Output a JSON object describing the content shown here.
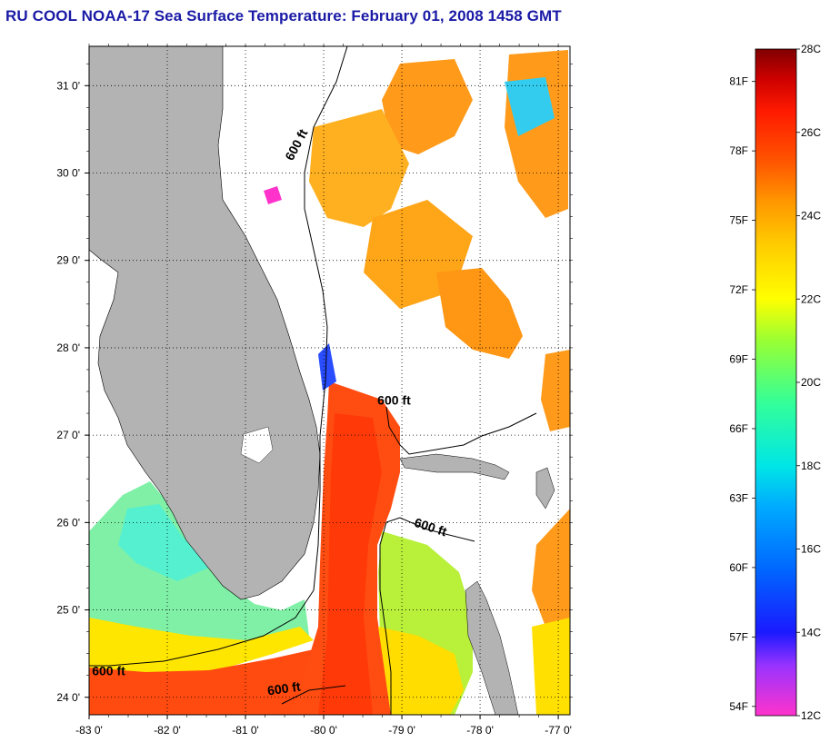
{
  "title": "RU COOL  NOAA-17  Sea Surface Temperature:  February 01, 2008 1458 GMT",
  "map": {
    "lon_range": [
      -83,
      -76.85
    ],
    "lat_range": [
      23.8,
      31.45
    ],
    "lon_ticks": [
      {
        "value": -83,
        "label": "-83 0'"
      },
      {
        "value": -82,
        "label": "-82 0'"
      },
      {
        "value": -81,
        "label": "-81 0'"
      },
      {
        "value": -80,
        "label": "-80 0'"
      },
      {
        "value": -79,
        "label": "-79 0'"
      },
      {
        "value": -78,
        "label": "-78 0'"
      },
      {
        "value": -77,
        "label": "-77 0'"
      }
    ],
    "lat_ticks": [
      {
        "value": 24,
        "label": "24 0'"
      },
      {
        "value": 25,
        "label": "25 0'"
      },
      {
        "value": 26,
        "label": "26 0'"
      },
      {
        "value": 27,
        "label": "27 0'"
      },
      {
        "value": 28,
        "label": "28 0'"
      },
      {
        "value": 29,
        "label": "29 0'"
      },
      {
        "value": 30,
        "label": "30 0'"
      },
      {
        "value": 31,
        "label": "31 0'"
      }
    ],
    "grid": "dotted",
    "contour_labels": [
      {
        "text": "600 ft",
        "lon": -80.3,
        "lat": 30.3,
        "rotate": -62
      },
      {
        "text": "600 ft",
        "lon": -79.1,
        "lat": 27.35,
        "rotate": 0
      },
      {
        "text": "600 ft",
        "lon": -78.65,
        "lat": 25.9,
        "rotate": 18
      },
      {
        "text": "600 ft",
        "lon": -82.75,
        "lat": 24.25,
        "rotate": 0
      },
      {
        "text": "600 ft",
        "lon": -80.5,
        "lat": 24.05,
        "rotate": -8
      }
    ],
    "land_color": "#b3b3b3",
    "no_data_color": "#ffffff"
  },
  "colorbar": {
    "celsius_labels": [
      "28C",
      "26C",
      "24C",
      "22C",
      "20C",
      "18C",
      "16C",
      "14C",
      "12C"
    ],
    "fahrenheit_labels": [
      "81F",
      "78F",
      "75F",
      "72F",
      "69F",
      "66F",
      "63F",
      "60F",
      "57F",
      "54F"
    ],
    "range_c": [
      12,
      28
    ],
    "stops": [
      {
        "c": 12,
        "color": "#ff33cc"
      },
      {
        "c": 13.2,
        "color": "#9933ff"
      },
      {
        "c": 14,
        "color": "#1a1aff"
      },
      {
        "c": 15.5,
        "color": "#0066ff"
      },
      {
        "c": 17,
        "color": "#00aaff"
      },
      {
        "c": 18,
        "color": "#00e6e6"
      },
      {
        "c": 19.5,
        "color": "#33ff99"
      },
      {
        "c": 21,
        "color": "#99ff33"
      },
      {
        "c": 22,
        "color": "#ffff00"
      },
      {
        "c": 23.3,
        "color": "#ffcc00"
      },
      {
        "c": 24.3,
        "color": "#ff9900"
      },
      {
        "c": 25.3,
        "color": "#ff5500"
      },
      {
        "c": 26.5,
        "color": "#ff1a00"
      },
      {
        "c": 27.3,
        "color": "#cc0000"
      },
      {
        "c": 28,
        "color": "#800000"
      }
    ]
  }
}
